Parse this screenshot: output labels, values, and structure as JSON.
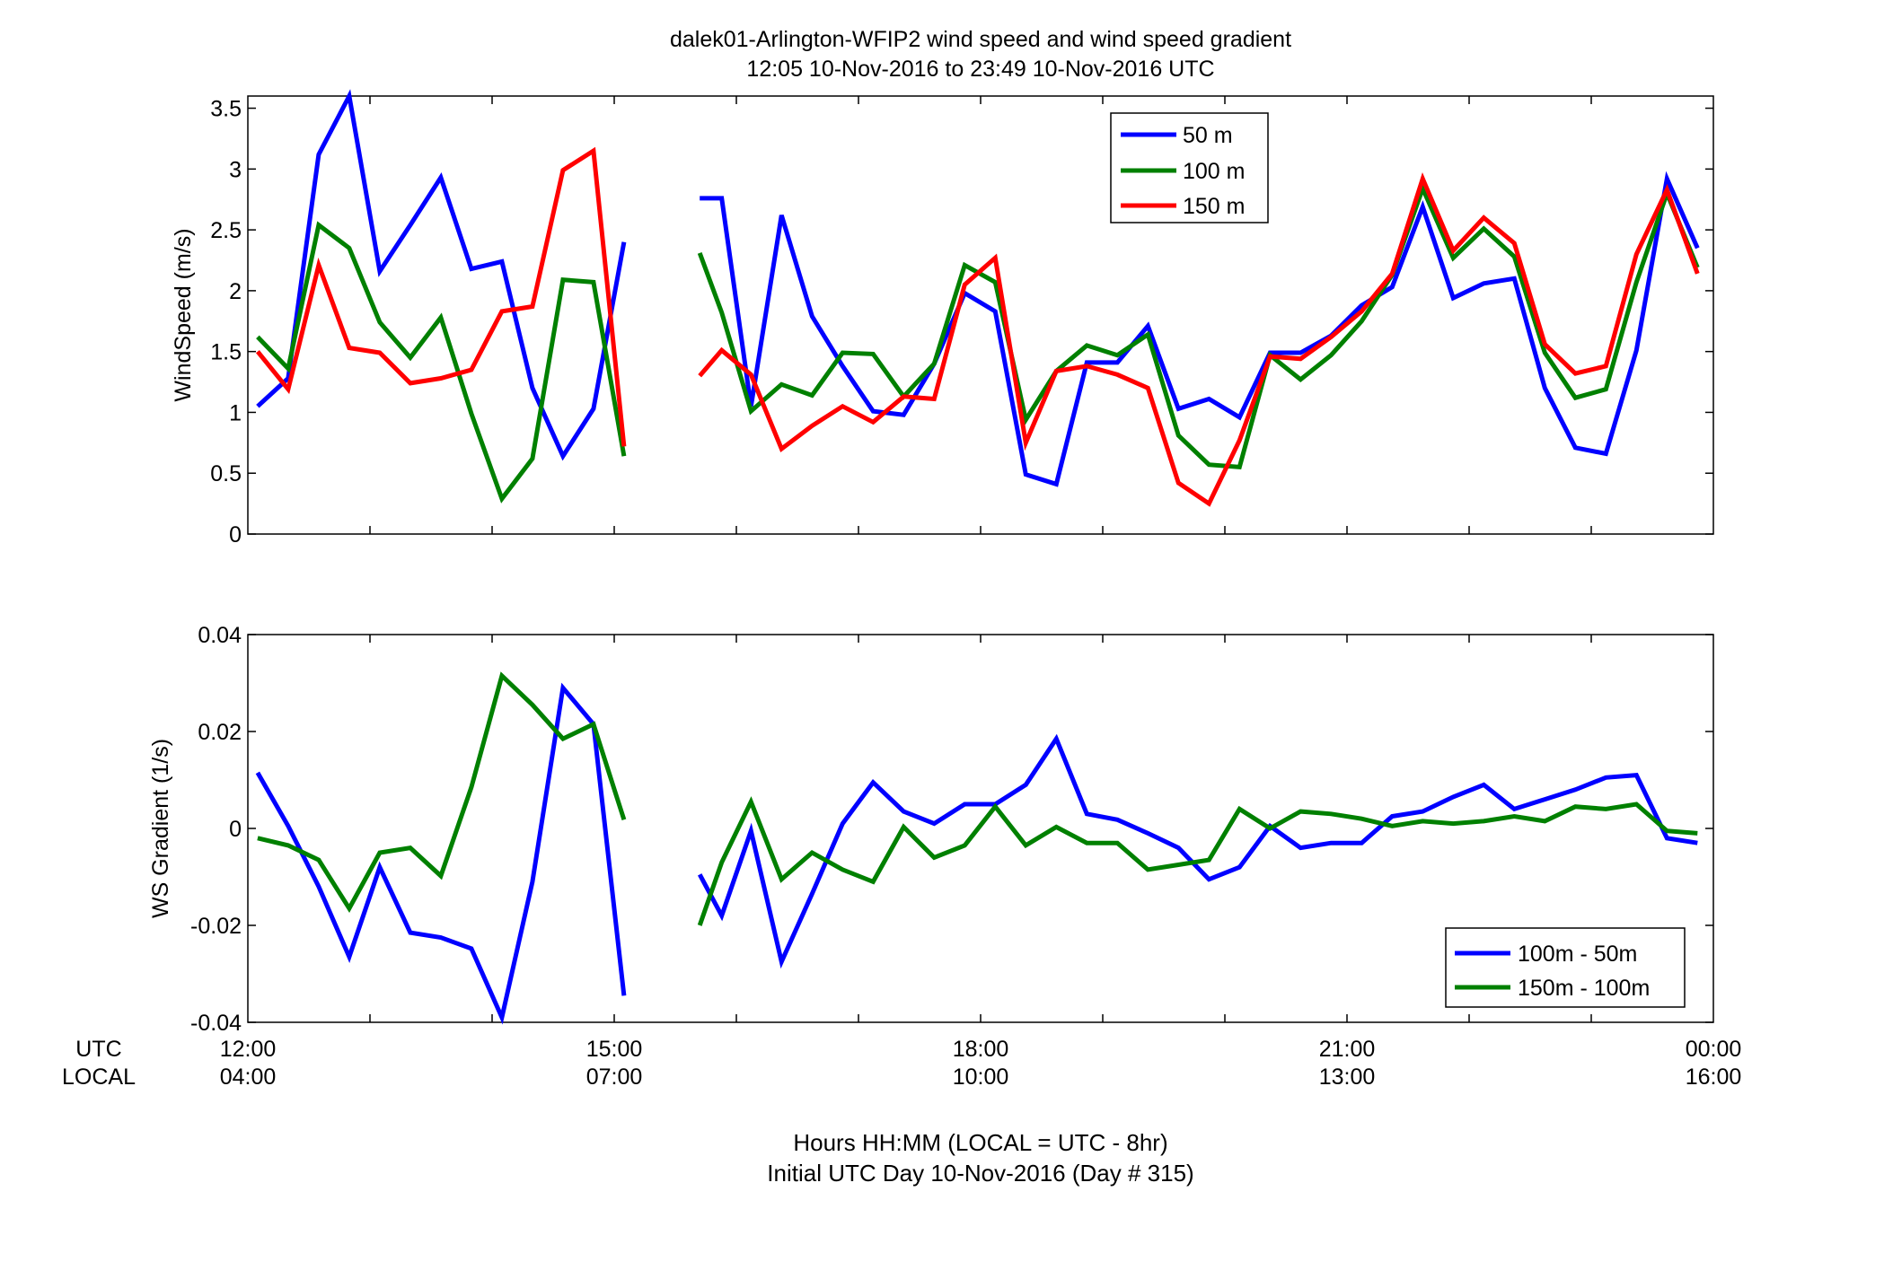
{
  "figure": {
    "title_line1": "dalek01-Arlington-WFIP2  wind speed and wind speed gradient",
    "title_line2": "12:05 10-Nov-2016 to 23:49 10-Nov-2016  UTC",
    "utc_label": "UTC",
    "local_label": "LOCAL",
    "xlabel_line1": "Hours HH:MM  (LOCAL = UTC - 8hr)",
    "xlabel_line2": "Initial UTC Day 10-Nov-2016 (Day # 315)",
    "utc_ticks": [
      "12:00",
      "15:00",
      "18:00",
      "21:00",
      "00:00"
    ],
    "local_ticks": [
      "04:00",
      "07:00",
      "10:00",
      "13:00",
      "16:00"
    ]
  },
  "chart_data": [
    {
      "type": "line",
      "title": "",
      "xlabel": "",
      "ylabel": "WindSpeed (m/s)",
      "x_units": "hours UTC from 12:00 10-Nov-2016",
      "xlim": [
        0,
        12
      ],
      "ylim": [
        0,
        3.6
      ],
      "yticks": [
        0,
        0.5,
        1,
        1.5,
        2,
        2.5,
        3,
        3.5
      ],
      "ytick_labels": [
        "0",
        "0.5",
        "1",
        "1.5",
        "2",
        "2.5",
        "3",
        "3.5"
      ],
      "legend_position": "top-right",
      "grid": false,
      "x": [
        0.08,
        0.33,
        0.58,
        0.83,
        1.08,
        1.33,
        1.58,
        1.83,
        2.08,
        2.33,
        2.58,
        2.83,
        3.08,
        null,
        3.7,
        3.88,
        4.12,
        4.37,
        4.62,
        4.87,
        5.12,
        5.37,
        5.62,
        5.87,
        6.12,
        6.37,
        6.62,
        6.87,
        7.12,
        7.37,
        7.62,
        7.87,
        8.12,
        8.37,
        8.62,
        8.87,
        9.12,
        9.37,
        9.62,
        9.87,
        10.12,
        10.37,
        10.62,
        10.87,
        11.12,
        11.37,
        11.62,
        11.87
      ],
      "series": [
        {
          "name": "50 m",
          "color": "#0000ff",
          "values": [
            1.05,
            1.28,
            3.12,
            3.7,
            2.16,
            2.54,
            2.93,
            2.18,
            2.24,
            1.2,
            0.64,
            1.03,
            2.4,
            null,
            2.76,
            2.76,
            1.05,
            2.62,
            1.79,
            1.38,
            1.01,
            0.98,
            1.4,
            1.98,
            1.83,
            0.49,
            0.41,
            1.41,
            1.41,
            1.71,
            1.03,
            1.11,
            0.96,
            1.49,
            1.49,
            1.63,
            1.88,
            2.03,
            2.69,
            1.94,
            2.06,
            2.1,
            1.2,
            0.71,
            0.66,
            1.51,
            2.92,
            2.35
          ]
        },
        {
          "name": "100 m",
          "color": "#008000",
          "values": [
            1.62,
            1.36,
            2.54,
            2.35,
            1.74,
            1.45,
            1.78,
            0.99,
            0.29,
            0.62,
            2.09,
            2.07,
            0.64,
            null,
            2.31,
            1.82,
            1.01,
            1.23,
            1.14,
            1.49,
            1.48,
            1.13,
            1.4,
            2.21,
            2.07,
            0.94,
            1.34,
            1.55,
            1.47,
            1.64,
            0.81,
            0.57,
            0.55,
            1.47,
            1.27,
            1.47,
            1.75,
            2.13,
            2.84,
            2.27,
            2.51,
            2.28,
            1.49,
            1.12,
            1.19,
            2.07,
            2.8,
            2.19
          ]
        },
        {
          "name": "150 m",
          "color": "#ff0000",
          "values": [
            1.5,
            1.19,
            2.21,
            1.53,
            1.49,
            1.24,
            1.28,
            1.35,
            1.83,
            1.87,
            2.99,
            3.15,
            0.72,
            null,
            1.3,
            1.51,
            1.31,
            0.7,
            0.89,
            1.05,
            0.92,
            1.13,
            1.11,
            2.05,
            2.27,
            0.75,
            1.34,
            1.38,
            1.31,
            1.2,
            0.42,
            0.25,
            0.77,
            1.46,
            1.44,
            1.62,
            1.83,
            2.14,
            2.92,
            2.33,
            2.6,
            2.39,
            1.56,
            1.32,
            1.38,
            2.3,
            2.83,
            2.14
          ]
        }
      ]
    },
    {
      "type": "line",
      "title": "",
      "xlabel": "",
      "ylabel": "WS Gradient (1/s)",
      "x_units": "hours UTC from 12:00 10-Nov-2016",
      "xlim": [
        0,
        12
      ],
      "ylim": [
        -0.04,
        0.04
      ],
      "yticks": [
        -0.04,
        -0.02,
        0,
        0.02,
        0.04
      ],
      "ytick_labels": [
        "-0.04",
        "-0.02",
        "0",
        "0.02",
        "0.04"
      ],
      "legend_position": "bottom-right",
      "grid": false,
      "x": [
        0.08,
        0.33,
        0.58,
        0.83,
        1.08,
        1.33,
        1.58,
        1.83,
        2.08,
        2.33,
        2.58,
        2.83,
        3.08,
        null,
        3.7,
        3.88,
        4.12,
        4.37,
        4.62,
        4.87,
        5.12,
        5.37,
        5.62,
        5.87,
        6.12,
        6.37,
        6.62,
        6.87,
        7.12,
        7.37,
        7.62,
        7.87,
        8.12,
        8.37,
        8.62,
        8.87,
        9.12,
        9.37,
        9.62,
        9.87,
        10.12,
        10.37,
        10.62,
        10.87,
        11.12,
        11.37,
        11.62,
        11.87
      ],
      "series": [
        {
          "name": "100m - 50m",
          "color": "#0000ff",
          "values": [
            0.0115,
            0.0005,
            -0.012,
            -0.0265,
            -0.008,
            -0.0215,
            -0.0225,
            -0.0248,
            -0.039,
            -0.011,
            0.029,
            0.0215,
            -0.0345,
            null,
            -0.0095,
            -0.018,
            -0.0005,
            -0.0275,
            -0.0135,
            0.001,
            0.0095,
            0.0035,
            0.001,
            0.005,
            0.005,
            0.009,
            0.0185,
            0.003,
            0.0018,
            -0.001,
            -0.004,
            -0.0105,
            -0.008,
            0.0005,
            -0.004,
            -0.003,
            -0.003,
            0.0025,
            0.0035,
            0.0065,
            0.009,
            0.004,
            0.006,
            0.008,
            0.0105,
            0.011,
            -0.002,
            -0.003
          ]
        },
        {
          "name": "150m - 100m",
          "color": "#008000",
          "values": [
            -0.002,
            -0.0035,
            -0.0065,
            -0.0165,
            -0.005,
            -0.004,
            -0.0098,
            0.0085,
            0.0315,
            0.0255,
            0.0185,
            0.0215,
            0.0018,
            null,
            -0.02,
            -0.007,
            0.0055,
            -0.0105,
            -0.005,
            -0.0085,
            -0.011,
            0.0003,
            -0.006,
            -0.0035,
            0.0045,
            -0.0035,
            0.0003,
            -0.003,
            -0.003,
            -0.0085,
            -0.0075,
            -0.0065,
            0.004,
            0.0,
            0.0035,
            0.003,
            0.002,
            0.0005,
            0.0015,
            0.001,
            0.0015,
            0.0025,
            0.0015,
            0.0045,
            0.004,
            0.005,
            -0.0005,
            -0.001
          ]
        }
      ]
    }
  ]
}
